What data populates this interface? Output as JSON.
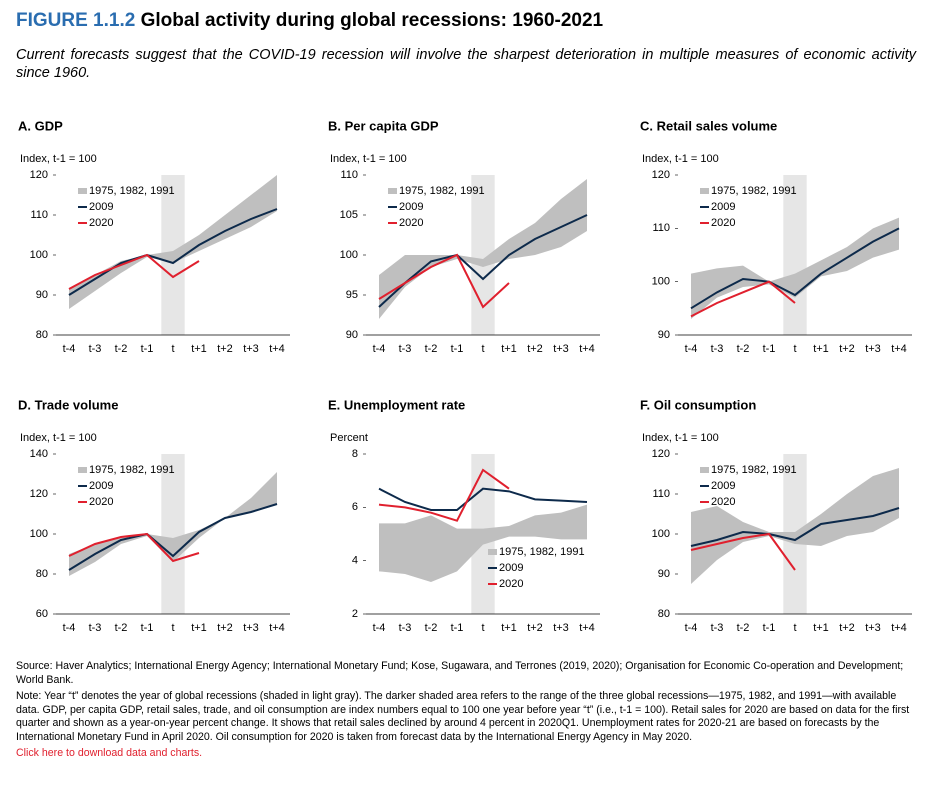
{
  "figure": {
    "label": "FIGURE 1.1.2",
    "title": "Global activity during global recessions: 1960-2021",
    "subtitle": "Current forecasts suggest that the COVID-19 recession will involve the sharpest deterioration in multiple measures of economic activity since 1960.",
    "source": "Source: Haver Analytics; International Energy Agency; International Monetary Fund; Kose, Sugawara, and Terrones (2019, 2020); Organisation for Economic Co-operation and Development; World Bank.",
    "note": "Note: Year “t” denotes the year of global recessions (shaded in light gray). The darker shaded area refers to the range of the three global recessions—1975, 1982, and 1991—with available data. GDP, per capita GDP, retail sales, trade, and oil consumption are index numbers equal to 100 one year before year “t” (i.e., t-1 = 100). Retail sales for 2020 are based on data for the first quarter and shown as a year-on-year percent change. It shows that retail sales declined by around 4 percent in 2020Q1. Unemployment rates for 2020-21 are based on forecasts by the International Monetary Fund in April 2020. Oil consumption for 2020 is taken from forecast data by the International Energy Agency in May 2020.",
    "link": "Click here to download data and charts."
  },
  "chart_data": [
    {
      "type": "line",
      "title": "A. GDP",
      "y_label": "Index, t-1 = 100",
      "categories": [
        "t-4",
        "t-3",
        "t-2",
        "t-1",
        "t",
        "t+1",
        "t+2",
        "t+3",
        "t+4"
      ],
      "ylim": [
        80,
        120
      ],
      "yticks": [
        80,
        90,
        100,
        110,
        120
      ],
      "legend": "upper left",
      "series": [
        {
          "name": "1975, 1982, 1991",
          "color": "#bfbfbf",
          "low": [
            86.5,
            91,
            95.5,
            99.5,
            98,
            101,
            104,
            107,
            111
          ],
          "high": [
            91.5,
            95,
            98.5,
            100,
            101,
            105,
            110,
            115,
            120
          ]
        },
        {
          "name": "2009",
          "color": "#0d2a4b",
          "values": [
            90,
            94,
            98,
            100,
            98,
            102.5,
            106,
            109,
            111.5
          ]
        },
        {
          "name": "2020",
          "color": "#e0202e",
          "values": [
            91.5,
            95,
            97.5,
            100,
            94.5,
            98.5,
            null,
            null,
            null
          ]
        }
      ]
    },
    {
      "type": "line",
      "title": "B. Per capita GDP",
      "y_label": "Index, t-1 = 100",
      "categories": [
        "t-4",
        "t-3",
        "t-2",
        "t-1",
        "t",
        "t+1",
        "t+2",
        "t+3",
        "t+4"
      ],
      "ylim": [
        90,
        110
      ],
      "yticks": [
        90,
        95,
        100,
        105,
        110
      ],
      "legend": "upper left",
      "series": [
        {
          "name": "1975, 1982, 1991",
          "color": "#bfbfbf",
          "low": [
            92,
            96,
            98.5,
            99.5,
            98.5,
            99.5,
            100,
            101,
            103
          ],
          "high": [
            97.5,
            100,
            100,
            100,
            99.5,
            102,
            104,
            107,
            109.5
          ]
        },
        {
          "name": "2009",
          "color": "#0d2a4b",
          "values": [
            93.5,
            96.5,
            99.2,
            100,
            97,
            100,
            102,
            103.5,
            105
          ]
        },
        {
          "name": "2020",
          "color": "#e0202e",
          "values": [
            94.5,
            96.5,
            98.5,
            100,
            93.5,
            96.5,
            null,
            null,
            null
          ]
        }
      ]
    },
    {
      "type": "line",
      "title": "C. Retail sales volume",
      "y_label": "Index, t-1 = 100",
      "categories": [
        "t-4",
        "t-3",
        "t-2",
        "t-1",
        "t",
        "t+1",
        "t+2",
        "t+3",
        "t+4"
      ],
      "ylim": [
        90,
        120
      ],
      "yticks": [
        90,
        100,
        110,
        120
      ],
      "legend": "upper left",
      "series": [
        {
          "name": "1975, 1982, 1991",
          "color": "#bfbfbf",
          "low": [
            93,
            97,
            99,
            99.5,
            97,
            101,
            102,
            104.5,
            106
          ],
          "high": [
            101.5,
            102.5,
            103,
            100,
            101.5,
            104,
            106.5,
            110,
            112
          ]
        },
        {
          "name": "2009",
          "color": "#0d2a4b",
          "values": [
            95,
            98,
            100.5,
            100,
            97.5,
            101.5,
            104.5,
            107.5,
            110
          ]
        },
        {
          "name": "2020",
          "color": "#e0202e",
          "values": [
            93.5,
            96,
            98,
            100,
            96,
            null,
            null,
            null,
            null
          ]
        }
      ]
    },
    {
      "type": "line",
      "title": "D. Trade volume",
      "y_label": "Index, t-1 = 100",
      "categories": [
        "t-4",
        "t-3",
        "t-2",
        "t-1",
        "t",
        "t+1",
        "t+2",
        "t+3",
        "t+4"
      ],
      "ylim": [
        60,
        140
      ],
      "yticks": [
        60,
        80,
        100,
        120,
        140
      ],
      "legend": "upper left",
      "series": [
        {
          "name": "1975, 1982, 1991",
          "color": "#bfbfbf",
          "low": [
            79,
            86,
            95,
            99,
            86,
            98,
            108,
            111,
            115
          ],
          "high": [
            90,
            95,
            98,
            100,
            98,
            102,
            108,
            118,
            131
          ]
        },
        {
          "name": "2009",
          "color": "#0d2a4b",
          "values": [
            82,
            90,
            97,
            100,
            89,
            101,
            108,
            111,
            115
          ]
        },
        {
          "name": "2020",
          "color": "#e0202e",
          "values": [
            89,
            95,
            98.5,
            100,
            86.5,
            90.5,
            null,
            null,
            null
          ]
        }
      ]
    },
    {
      "type": "line",
      "title": "E. Unemployment rate",
      "y_label": "Percent",
      "categories": [
        "t-4",
        "t-3",
        "t-2",
        "t-1",
        "t",
        "t+1",
        "t+2",
        "t+3",
        "t+4"
      ],
      "ylim": [
        2,
        8
      ],
      "yticks": [
        2,
        4,
        6,
        8
      ],
      "legend": "lower right",
      "series": [
        {
          "name": "1975, 1982, 1991",
          "color": "#bfbfbf",
          "low": [
            3.6,
            3.5,
            3.2,
            3.6,
            4.6,
            4.9,
            4.9,
            4.8,
            4.8
          ],
          "high": [
            5.4,
            5.4,
            5.7,
            5.2,
            5.2,
            5.3,
            5.7,
            5.8,
            6.1
          ]
        },
        {
          "name": "2009",
          "color": "#0d2a4b",
          "values": [
            6.7,
            6.2,
            5.9,
            5.9,
            6.7,
            6.6,
            6.3,
            6.25,
            6.2
          ]
        },
        {
          "name": "2020",
          "color": "#e0202e",
          "values": [
            6.1,
            6.0,
            5.8,
            5.5,
            7.4,
            6.7,
            null,
            null,
            null
          ]
        }
      ]
    },
    {
      "type": "line",
      "title": "F. Oil consumption",
      "y_label": "Index, t-1 = 100",
      "categories": [
        "t-4",
        "t-3",
        "t-2",
        "t-1",
        "t",
        "t+1",
        "t+2",
        "t+3",
        "t+4"
      ],
      "ylim": [
        80,
        120
      ],
      "yticks": [
        80,
        90,
        100,
        110,
        120
      ],
      "legend": "upper left",
      "series": [
        {
          "name": "1975, 1982, 1991",
          "color": "#bfbfbf",
          "low": [
            87.5,
            93.5,
            98,
            99.5,
            97.5,
            97,
            99.5,
            100.5,
            104
          ],
          "high": [
            105.5,
            107,
            103,
            100.5,
            100.5,
            105,
            110,
            114.5,
            116.5
          ]
        },
        {
          "name": "2009",
          "color": "#0d2a4b",
          "values": [
            97,
            98.5,
            100.5,
            100,
            98.5,
            102.5,
            103.5,
            104.5,
            106.5
          ]
        },
        {
          "name": "2020",
          "color": "#e0202e",
          "values": [
            96,
            97.5,
            99,
            100,
            91,
            null,
            null,
            null,
            null
          ]
        }
      ]
    }
  ]
}
